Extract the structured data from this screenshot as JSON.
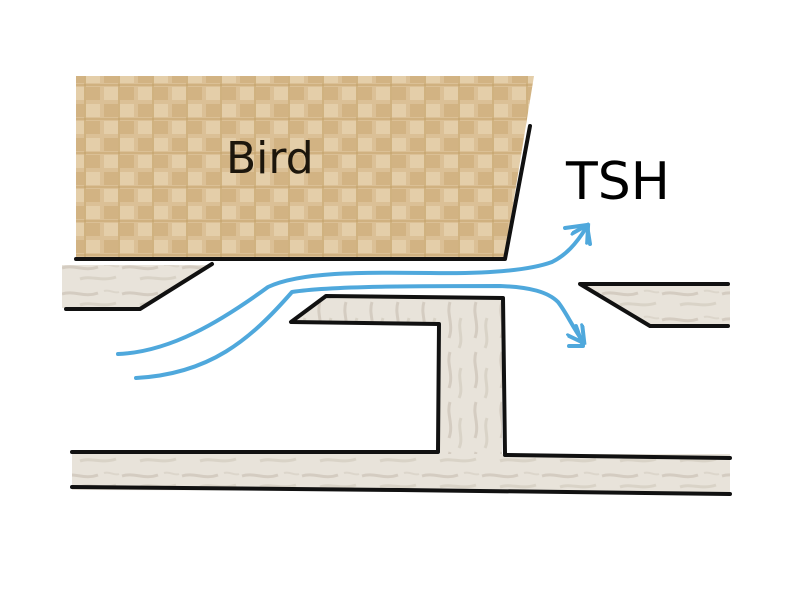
{
  "labels": {
    "bird": "Bird",
    "tsh": "TSH"
  },
  "colors": {
    "bird_fill": "#dbc096",
    "bird_weave": "#c8a56e",
    "bar_fill": "#e6e0d6",
    "bar_streak": "#cfc7ba",
    "outline": "#111111",
    "flow": "#4fa8dc",
    "background": "#ffffff"
  }
}
